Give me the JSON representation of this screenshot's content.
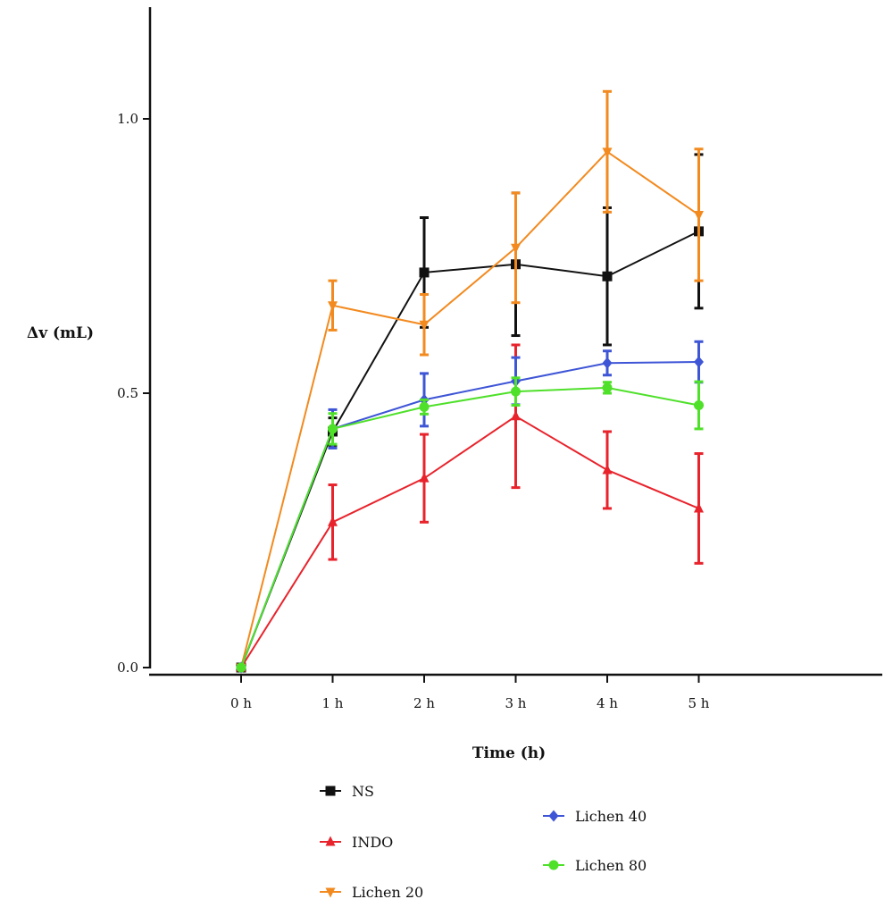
{
  "chart_data": {
    "type": "line",
    "xlabel": "Time (h)",
    "ylabel": "Δv (mL)",
    "x_ticks": [
      "0 h",
      "1 h",
      "2 h",
      "3 h",
      "4 h",
      "5 h"
    ],
    "x": [
      0,
      1,
      2,
      3,
      4,
      5
    ],
    "y_ticks": [
      "0.0",
      "0.5",
      "1.0"
    ],
    "ylim": [
      0,
      1.2
    ],
    "grid": false,
    "legend_position": "bottom",
    "series": [
      {
        "name": "NS",
        "color": "#111111",
        "marker": "square",
        "values": [
          0,
          0.43,
          0.72,
          0.735,
          0.713,
          0.795
        ],
        "errors": [
          0,
          0.025,
          0.1,
          0.13,
          0.125,
          0.14
        ]
      },
      {
        "name": "INDO",
        "color": "#e8232c",
        "marker": "triangle-up",
        "values": [
          0,
          0.265,
          0.345,
          0.458,
          0.36,
          0.29
        ],
        "errors": [
          0,
          0.068,
          0.08,
          0.13,
          0.07,
          0.1
        ]
      },
      {
        "name": "Lichen 20",
        "color": "#f28a1f",
        "marker": "triangle-down",
        "values": [
          0,
          0.66,
          0.625,
          0.765,
          0.94,
          0.825
        ],
        "errors": [
          0,
          0.045,
          0.055,
          0.1,
          0.11,
          0.12
        ]
      },
      {
        "name": "Lichen 40",
        "color": "#3e55d6",
        "marker": "diamond",
        "values": [
          0,
          0.435,
          0.488,
          0.522,
          0.555,
          0.557
        ],
        "errors": [
          0,
          0.035,
          0.048,
          0.043,
          0.022,
          0.037
        ]
      },
      {
        "name": "Lichen 80",
        "color": "#4fe02a",
        "marker": "circle",
        "values": [
          0,
          0.435,
          0.475,
          0.503,
          0.51,
          0.478
        ],
        "errors": [
          0,
          0.028,
          0.013,
          0.025,
          0.01,
          0.043
        ]
      }
    ]
  }
}
